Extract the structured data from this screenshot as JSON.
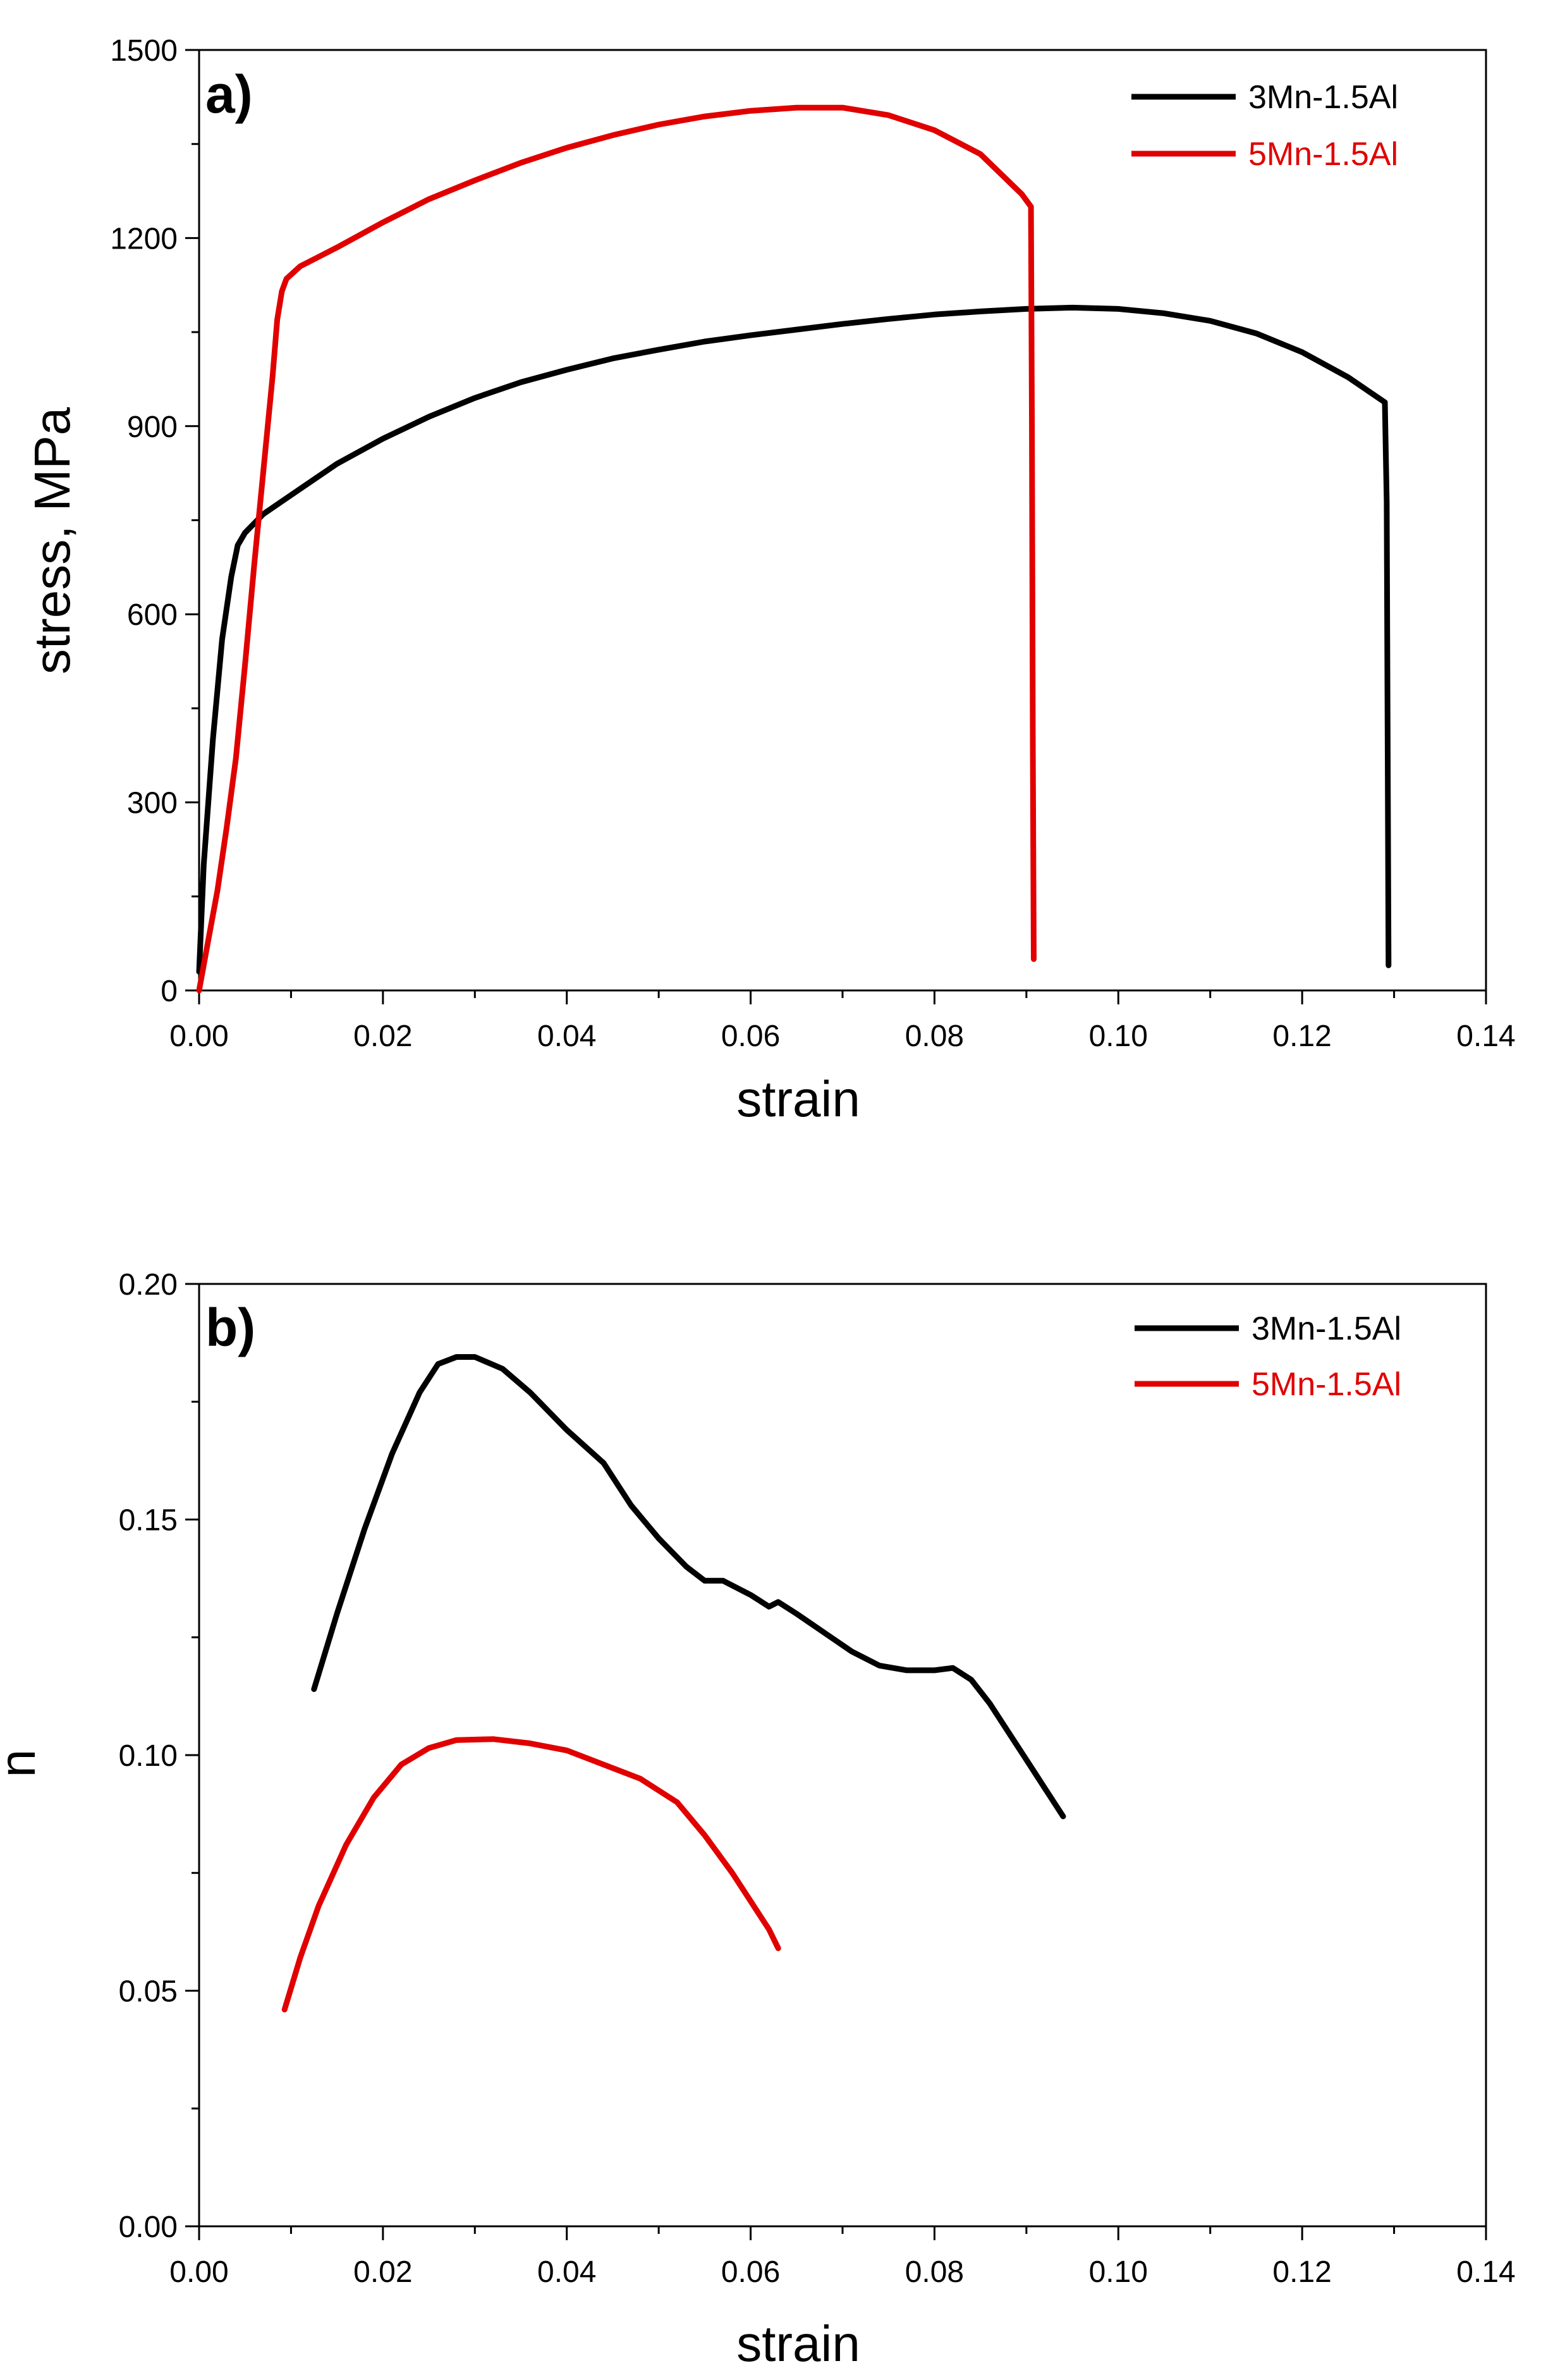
{
  "chart_data": [
    {
      "type": "line",
      "panel_label": "a)",
      "xlabel": "strain",
      "ylabel": "stress, MPa",
      "xlim": [
        0,
        0.14
      ],
      "ylim": [
        0,
        1500
      ],
      "xticks": [
        0,
        0.02,
        0.04,
        0.06,
        0.08,
        0.1,
        0.12,
        0.14
      ],
      "xtick_labels": [
        "0.00",
        "0.02",
        "0.04",
        "0.06",
        "0.08",
        "0.10",
        "0.12",
        "0.14"
      ],
      "yticks": [
        0,
        300,
        600,
        900,
        1200,
        1500
      ],
      "ytick_labels": [
        "0",
        "300",
        "600",
        "900",
        "1200",
        "1500"
      ],
      "legend_position": "top-right",
      "series": [
        {
          "name": "3Mn-1.5Al",
          "color": "#000000",
          "points": [
            [
              0,
              30
            ],
            [
              0.0005,
              200
            ],
            [
              0.0015,
              400
            ],
            [
              0.0025,
              560
            ],
            [
              0.0035,
              660
            ],
            [
              0.0042,
              710
            ],
            [
              0.005,
              730
            ],
            [
              0.007,
              760
            ],
            [
              0.01,
              790
            ],
            [
              0.015,
              840
            ],
            [
              0.02,
              880
            ],
            [
              0.025,
              915
            ],
            [
              0.03,
              945
            ],
            [
              0.035,
              970
            ],
            [
              0.04,
              990
            ],
            [
              0.045,
              1008
            ],
            [
              0.05,
              1022
            ],
            [
              0.055,
              1035
            ],
            [
              0.06,
              1045
            ],
            [
              0.065,
              1054
            ],
            [
              0.07,
              1063
            ],
            [
              0.075,
              1071
            ],
            [
              0.08,
              1078
            ],
            [
              0.085,
              1083
            ],
            [
              0.09,
              1087
            ],
            [
              0.095,
              1089
            ],
            [
              0.1,
              1087
            ],
            [
              0.105,
              1080
            ],
            [
              0.11,
              1068
            ],
            [
              0.115,
              1048
            ],
            [
              0.12,
              1018
            ],
            [
              0.125,
              978
            ],
            [
              0.129,
              938
            ],
            [
              0.1292,
              780
            ],
            [
              0.1293,
              400
            ],
            [
              0.1294,
              40
            ]
          ]
        },
        {
          "name": "5Mn-1.5Al",
          "color": "#e00000",
          "points": [
            [
              0,
              0
            ],
            [
              0.001,
              80
            ],
            [
              0.002,
              160
            ],
            [
              0.003,
              260
            ],
            [
              0.004,
              370
            ],
            [
              0.005,
              520
            ],
            [
              0.006,
              680
            ],
            [
              0.007,
              830
            ],
            [
              0.008,
              980
            ],
            [
              0.0085,
              1070
            ],
            [
              0.009,
              1115
            ],
            [
              0.0095,
              1135
            ],
            [
              0.011,
              1155
            ],
            [
              0.015,
              1185
            ],
            [
              0.02,
              1225
            ],
            [
              0.025,
              1262
            ],
            [
              0.03,
              1292
            ],
            [
              0.035,
              1320
            ],
            [
              0.04,
              1344
            ],
            [
              0.045,
              1364
            ],
            [
              0.05,
              1381
            ],
            [
              0.055,
              1394
            ],
            [
              0.06,
              1403
            ],
            [
              0.065,
              1408
            ],
            [
              0.07,
              1408
            ],
            [
              0.075,
              1396
            ],
            [
              0.08,
              1372
            ],
            [
              0.085,
              1334
            ],
            [
              0.0895,
              1270
            ],
            [
              0.0905,
              1250
            ],
            [
              0.0906,
              900
            ],
            [
              0.0907,
              400
            ],
            [
              0.0908,
              50
            ]
          ]
        }
      ]
    },
    {
      "type": "line",
      "panel_label": "b)",
      "xlabel": "strain",
      "ylabel": "n",
      "xlim": [
        0,
        0.14
      ],
      "ylim": [
        0,
        0.2
      ],
      "xticks": [
        0,
        0.02,
        0.04,
        0.06,
        0.08,
        0.1,
        0.12,
        0.14
      ],
      "xtick_labels": [
        "0.00",
        "0.02",
        "0.04",
        "0.06",
        "0.08",
        "0.10",
        "0.12",
        "0.14"
      ],
      "yticks": [
        0,
        0.05,
        0.1,
        0.15,
        0.2
      ],
      "ytick_labels": [
        "0.00",
        "0.05",
        "0.10",
        "0.15",
        "0.20"
      ],
      "legend_position": "top-right",
      "series": [
        {
          "name": "3Mn-1.5Al",
          "color": "#000000",
          "points": [
            [
              0.0125,
              0.114
            ],
            [
              0.015,
              0.13
            ],
            [
              0.018,
              0.148
            ],
            [
              0.021,
              0.164
            ],
            [
              0.024,
              0.177
            ],
            [
              0.026,
              0.183
            ],
            [
              0.028,
              0.1845
            ],
            [
              0.03,
              0.1845
            ],
            [
              0.033,
              0.182
            ],
            [
              0.036,
              0.177
            ],
            [
              0.04,
              0.169
            ],
            [
              0.044,
              0.162
            ],
            [
              0.047,
              0.153
            ],
            [
              0.05,
              0.146
            ],
            [
              0.053,
              0.14
            ],
            [
              0.055,
              0.137
            ],
            [
              0.057,
              0.137
            ],
            [
              0.06,
              0.134
            ],
            [
              0.062,
              0.1315
            ],
            [
              0.063,
              0.1325
            ],
            [
              0.065,
              0.13
            ],
            [
              0.068,
              0.126
            ],
            [
              0.071,
              0.122
            ],
            [
              0.074,
              0.119
            ],
            [
              0.077,
              0.118
            ],
            [
              0.08,
              0.118
            ],
            [
              0.082,
              0.1185
            ],
            [
              0.084,
              0.116
            ],
            [
              0.086,
              0.111
            ],
            [
              0.088,
              0.105
            ],
            [
              0.09,
              0.099
            ],
            [
              0.092,
              0.093
            ],
            [
              0.094,
              0.087
            ]
          ]
        },
        {
          "name": "5Mn-1.5Al",
          "color": "#e00000",
          "points": [
            [
              0.0093,
              0.046
            ],
            [
              0.011,
              0.057
            ],
            [
              0.013,
              0.068
            ],
            [
              0.016,
              0.081
            ],
            [
              0.019,
              0.091
            ],
            [
              0.022,
              0.098
            ],
            [
              0.025,
              0.1015
            ],
            [
              0.028,
              0.1032
            ],
            [
              0.032,
              0.1034
            ],
            [
              0.036,
              0.1025
            ],
            [
              0.04,
              0.101
            ],
            [
              0.044,
              0.098
            ],
            [
              0.048,
              0.095
            ],
            [
              0.052,
              0.09
            ],
            [
              0.055,
              0.083
            ],
            [
              0.058,
              0.075
            ],
            [
              0.06,
              0.069
            ],
            [
              0.062,
              0.063
            ],
            [
              0.063,
              0.059
            ]
          ]
        }
      ]
    }
  ]
}
